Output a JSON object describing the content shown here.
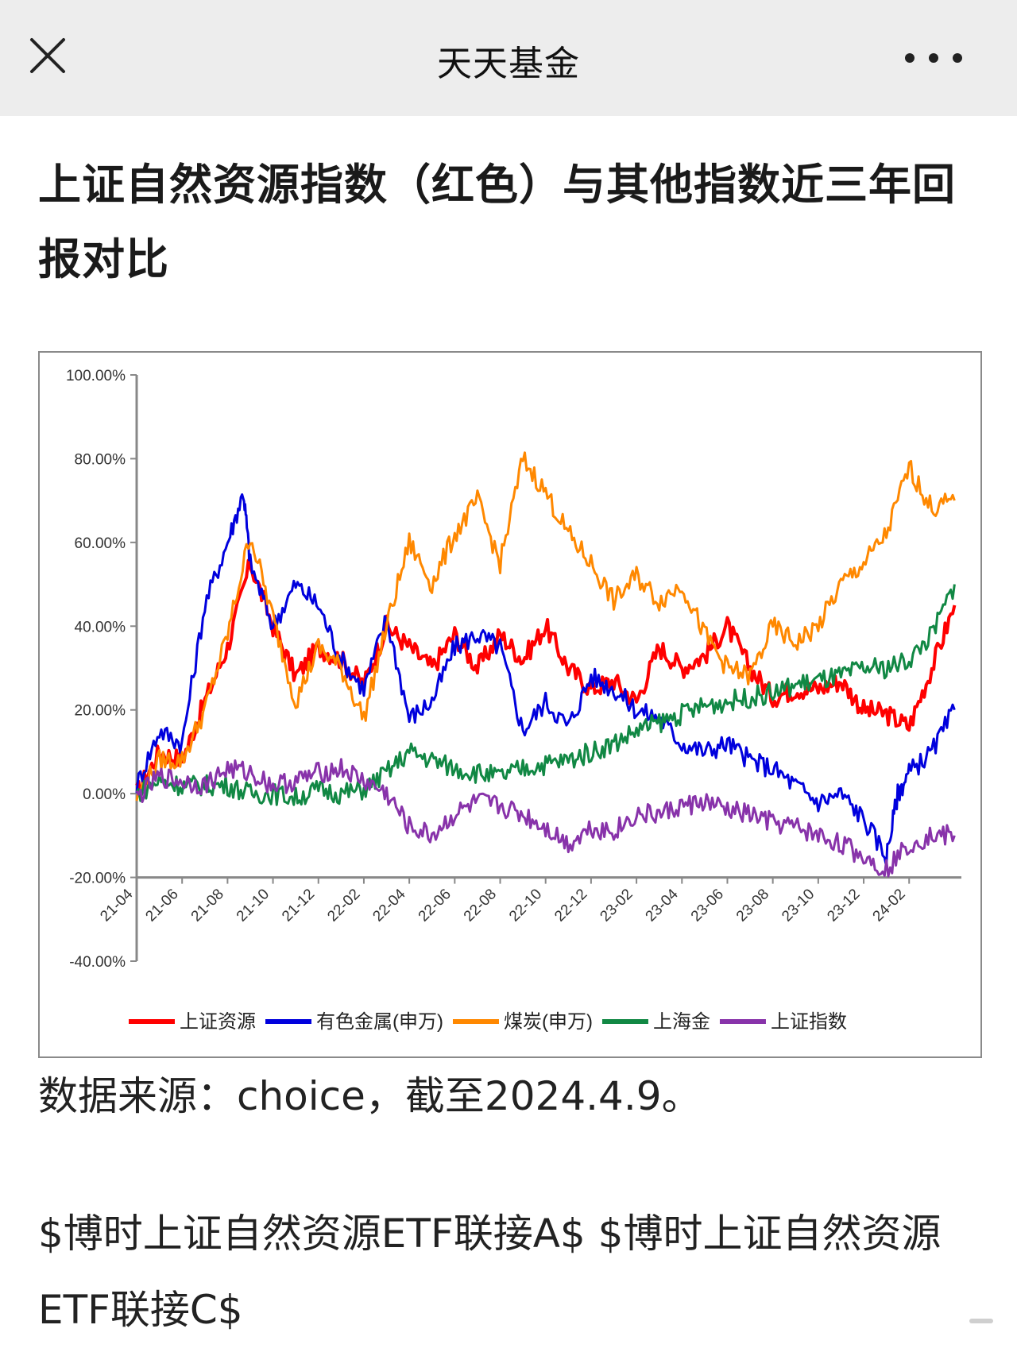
{
  "app": {
    "title": "天天基金"
  },
  "article": {
    "title": "上证自然资源指数（红色）与其他指数近三年回报对比",
    "caption": "数据来源：choice，截至2024.4.9。",
    "stocks": [
      {
        "label": "$博时上证自然资源ETF联接A$"
      },
      {
        "label": "$博时上证自然资源ETF联接C$"
      }
    ]
  },
  "chart_data": {
    "type": "line",
    "title": "",
    "xlabel": "",
    "ylabel": "",
    "ylim": [
      -40,
      100
    ],
    "y_ticks": [
      "100.00%",
      "80.00%",
      "60.00%",
      "40.00%",
      "20.00%",
      "0.00%",
      "-20.00%",
      "-40.00%"
    ],
    "y_tick_values": [
      100,
      80,
      60,
      40,
      20,
      0,
      -20,
      -40
    ],
    "categories": [
      "21-04",
      "21-06",
      "21-08",
      "21-10",
      "21-12",
      "22-02",
      "22-04",
      "22-06",
      "22-08",
      "22-10",
      "22-12",
      "23-02",
      "23-04",
      "23-06",
      "23-08",
      "23-10",
      "23-12",
      "24-02"
    ],
    "x_range": [
      0,
      36.3
    ],
    "legend_position": "bottom",
    "grid": false,
    "series": [
      {
        "name": "上证资源",
        "color": "#ff0000",
        "points": [
          [
            0,
            0
          ],
          [
            1,
            10
          ],
          [
            2,
            8
          ],
          [
            3,
            22
          ],
          [
            4,
            35
          ],
          [
            5,
            55
          ],
          [
            6,
            40
          ],
          [
            7,
            28
          ],
          [
            8,
            35
          ],
          [
            9,
            32
          ],
          [
            10,
            26
          ],
          [
            11,
            40
          ],
          [
            12,
            35
          ],
          [
            13,
            30
          ],
          [
            14,
            38
          ],
          [
            15,
            30
          ],
          [
            16,
            38
          ],
          [
            17,
            32
          ],
          [
            18,
            40
          ],
          [
            19,
            30
          ],
          [
            20,
            25
          ],
          [
            21,
            27
          ],
          [
            22,
            22
          ],
          [
            23,
            35
          ],
          [
            24,
            30
          ],
          [
            25,
            33
          ],
          [
            26,
            40
          ],
          [
            27,
            30
          ],
          [
            28,
            23
          ],
          [
            29,
            25
          ],
          [
            30,
            25
          ],
          [
            31,
            27
          ],
          [
            32,
            20
          ],
          [
            33,
            19
          ],
          [
            34,
            16
          ],
          [
            35,
            30
          ],
          [
            36,
            45
          ]
        ]
      },
      {
        "name": "有色金属(申万)",
        "color": "#0000dd",
        "points": [
          [
            0,
            2
          ],
          [
            1,
            15
          ],
          [
            2,
            12
          ],
          [
            3,
            45
          ],
          [
            4,
            60
          ],
          [
            4.7,
            72
          ],
          [
            5,
            55
          ],
          [
            6,
            40
          ],
          [
            7,
            50
          ],
          [
            8,
            45
          ],
          [
            9,
            32
          ],
          [
            10,
            25
          ],
          [
            11,
            42
          ],
          [
            12,
            18
          ],
          [
            13,
            22
          ],
          [
            14,
            35
          ],
          [
            15,
            38
          ],
          [
            16,
            35
          ],
          [
            17,
            15
          ],
          [
            18,
            22
          ],
          [
            19,
            16
          ],
          [
            20,
            28
          ],
          [
            21,
            25
          ],
          [
            22,
            20
          ],
          [
            23,
            18
          ],
          [
            24,
            12
          ],
          [
            25,
            10
          ],
          [
            26,
            12
          ],
          [
            27,
            8
          ],
          [
            28,
            6
          ],
          [
            29,
            2
          ],
          [
            30,
            -2
          ],
          [
            31,
            0
          ],
          [
            32,
            -6
          ],
          [
            33,
            -15
          ],
          [
            33.5,
            0
          ],
          [
            34,
            5
          ],
          [
            35,
            10
          ],
          [
            36,
            20
          ]
        ]
      },
      {
        "name": "煤炭(申万)",
        "color": "#ff8800",
        "points": [
          [
            0,
            -1
          ],
          [
            1,
            8
          ],
          [
            2,
            8
          ],
          [
            3,
            20
          ],
          [
            4,
            38
          ],
          [
            5,
            62
          ],
          [
            6,
            42
          ],
          [
            7,
            22
          ],
          [
            8,
            35
          ],
          [
            9,
            30
          ],
          [
            10,
            18
          ],
          [
            11,
            40
          ],
          [
            12,
            60
          ],
          [
            13,
            50
          ],
          [
            14,
            62
          ],
          [
            15,
            70
          ],
          [
            16,
            55
          ],
          [
            17,
            80
          ],
          [
            18,
            72
          ],
          [
            19,
            62
          ],
          [
            20,
            55
          ],
          [
            21,
            46
          ],
          [
            22,
            52
          ],
          [
            23,
            46
          ],
          [
            24,
            50
          ],
          [
            25,
            38
          ],
          [
            26,
            30
          ],
          [
            27,
            28
          ],
          [
            28,
            40
          ],
          [
            29,
            36
          ],
          [
            30,
            40
          ],
          [
            31,
            50
          ],
          [
            32,
            55
          ],
          [
            33,
            62
          ],
          [
            34,
            78
          ],
          [
            35,
            68
          ],
          [
            36,
            70
          ]
        ]
      },
      {
        "name": "上海金",
        "color": "#118844",
        "points": [
          [
            0,
            0
          ],
          [
            1,
            3
          ],
          [
            2,
            2
          ],
          [
            3,
            2
          ],
          [
            4,
            2
          ],
          [
            5,
            0
          ],
          [
            6,
            0
          ],
          [
            7,
            -1
          ],
          [
            8,
            1
          ],
          [
            9,
            0
          ],
          [
            10,
            1
          ],
          [
            11,
            5
          ],
          [
            12,
            10
          ],
          [
            13,
            8
          ],
          [
            14,
            6
          ],
          [
            15,
            5
          ],
          [
            16,
            4
          ],
          [
            17,
            6
          ],
          [
            18,
            7
          ],
          [
            19,
            8
          ],
          [
            20,
            10
          ],
          [
            21,
            12
          ],
          [
            22,
            15
          ],
          [
            23,
            17
          ],
          [
            24,
            19
          ],
          [
            25,
            21
          ],
          [
            26,
            22
          ],
          [
            27,
            23
          ],
          [
            28,
            24
          ],
          [
            29,
            26
          ],
          [
            30,
            27
          ],
          [
            31,
            28
          ],
          [
            32,
            30
          ],
          [
            33,
            30
          ],
          [
            34,
            32
          ],
          [
            35,
            38
          ],
          [
            36,
            50
          ]
        ]
      },
      {
        "name": "上证指数",
        "color": "#8833aa",
        "points": [
          [
            0,
            -1
          ],
          [
            1,
            4
          ],
          [
            2,
            3
          ],
          [
            3,
            2
          ],
          [
            4,
            6
          ],
          [
            5,
            5
          ],
          [
            6,
            2
          ],
          [
            7,
            3
          ],
          [
            8,
            5
          ],
          [
            9,
            6
          ],
          [
            10,
            3
          ],
          [
            11,
            0
          ],
          [
            12,
            -8
          ],
          [
            13,
            -10
          ],
          [
            14,
            -5
          ],
          [
            15,
            -2
          ],
          [
            16,
            -3
          ],
          [
            17,
            -5
          ],
          [
            18,
            -8
          ],
          [
            19,
            -12
          ],
          [
            20,
            -8
          ],
          [
            21,
            -9
          ],
          [
            22,
            -5
          ],
          [
            23,
            -5
          ],
          [
            24,
            -3
          ],
          [
            25,
            -2
          ],
          [
            26,
            -4
          ],
          [
            27,
            -5
          ],
          [
            28,
            -7
          ],
          [
            29,
            -8
          ],
          [
            30,
            -10
          ],
          [
            31,
            -12
          ],
          [
            32,
            -15
          ],
          [
            33,
            -18
          ],
          [
            34,
            -12
          ],
          [
            35,
            -10
          ],
          [
            36,
            -10
          ]
        ]
      }
    ]
  }
}
